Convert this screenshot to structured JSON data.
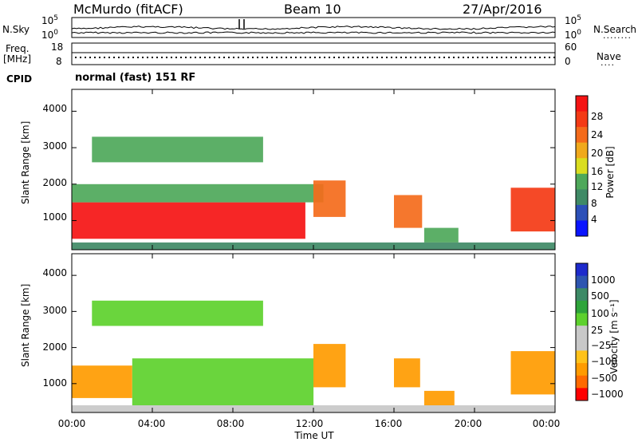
{
  "header": {
    "station": "McMurdo (fitACF)",
    "beam": "Beam 10",
    "date": "27/Apr/2016"
  },
  "left_labels": {
    "nsky": "N.Sky",
    "freq": "Freq.",
    "freq_unit": "[MHz]",
    "cpid": "CPID"
  },
  "right_labels": {
    "nsearch": "N.Search",
    "nave": "Nave",
    "nsearch_dots": "........",
    "nave_dots": "...."
  },
  "noise_panel": {
    "left_ticks": [
      "10^5",
      "10^0"
    ],
    "right_ticks": [
      "10^5",
      "10^0"
    ]
  },
  "freq_panel": {
    "left_ticks": [
      "18",
      "8"
    ],
    "right_ticks": [
      "60",
      "0"
    ]
  },
  "mode_text": "normal (fast) 151 RF",
  "colors": {
    "power": [
      "#0a14ff",
      "#2c50b8",
      "#3f8a66",
      "#4ea85a",
      "#dadd1f",
      "#f0a91c",
      "#f46b1b",
      "#f43a15",
      "#f51313"
    ],
    "velocity": [
      "#ff0000",
      "#ff6a00",
      "#ff9b00",
      "#ffc21a",
      "#c8c8c8",
      "#c8c8c8",
      "#5dd12d",
      "#2ea43a",
      "#3c8a66",
      "#2d55b0",
      "#1d2acc"
    ]
  },
  "chart_data": [
    {
      "type": "heatmap",
      "title": "",
      "xlabel": "Time UT",
      "ylabel": "Slant Range [km]",
      "x_ticks": [
        "00:00",
        "04:00",
        "08:00",
        "12:00",
        "16:00",
        "20:00",
        "00:00"
      ],
      "y_ticks": [
        "1000",
        "2000",
        "3000",
        "4000"
      ],
      "xlim_hours": [
        0,
        24
      ],
      "ylim_km": [
        200,
        4600
      ],
      "colorbar": {
        "label": "Power [dB]",
        "ticks": [
          "4",
          "8",
          "12",
          "16",
          "20",
          "24",
          "28"
        ],
        "range": [
          0,
          30
        ]
      },
      "regions": [
        {
          "t0": 0.0,
          "t1": 11.6,
          "r0": 500,
          "r1": 1500,
          "value": 28
        },
        {
          "t0": 0.0,
          "t1": 12.5,
          "r0": 1500,
          "r1": 2000,
          "value": 12
        },
        {
          "t0": 12.0,
          "t1": 13.6,
          "r0": 1100,
          "r1": 2100,
          "value": 20
        },
        {
          "t0": 16.0,
          "t1": 17.4,
          "r0": 800,
          "r1": 1700,
          "value": 20
        },
        {
          "t0": 17.5,
          "t1": 19.2,
          "r0": 400,
          "r1": 800,
          "value": 10
        },
        {
          "t0": 21.8,
          "t1": 24.0,
          "r0": 700,
          "r1": 1900,
          "value": 26
        },
        {
          "t0": 1.0,
          "t1": 9.5,
          "r0": 2600,
          "r1": 3300,
          "value": 12
        },
        {
          "t0": 0.0,
          "t1": 24.0,
          "r0": 200,
          "r1": 400,
          "value": 8
        }
      ]
    },
    {
      "type": "heatmap",
      "title": "",
      "xlabel": "Time UT",
      "ylabel": "Slant Range [km]",
      "x_ticks": [
        "00:00",
        "04:00",
        "08:00",
        "12:00",
        "16:00",
        "20:00",
        "00:00"
      ],
      "y_ticks": [
        "1000",
        "2000",
        "3000",
        "4000"
      ],
      "xlim_hours": [
        0,
        24
      ],
      "ylim_km": [
        200,
        4600
      ],
      "colorbar": {
        "label": "Velocity [m s⁻¹]",
        "ticks": [
          "1000",
          "500",
          "100",
          "25",
          "−25",
          "−100",
          "−500",
          "−1000"
        ]
      },
      "regions": [
        {
          "t0": 0.0,
          "t1": 3.0,
          "r0": 600,
          "r1": 1500,
          "value": -100
        },
        {
          "t0": 3.0,
          "t1": 12.0,
          "r0": 400,
          "r1": 1700,
          "value": 50
        },
        {
          "t0": 12.0,
          "t1": 13.6,
          "r0": 900,
          "r1": 2100,
          "value": -100
        },
        {
          "t0": 16.0,
          "t1": 17.3,
          "r0": 900,
          "r1": 1700,
          "value": -100
        },
        {
          "t0": 17.5,
          "t1": 19.0,
          "r0": 400,
          "r1": 800,
          "value": -100
        },
        {
          "t0": 21.8,
          "t1": 24.0,
          "r0": 700,
          "r1": 1900,
          "value": -100
        },
        {
          "t0": 1.0,
          "t1": 9.5,
          "r0": 2600,
          "r1": 3300,
          "value": 50
        },
        {
          "t0": 0.0,
          "t1": 24.0,
          "r0": 200,
          "r1": 400,
          "value": 25
        }
      ]
    }
  ]
}
